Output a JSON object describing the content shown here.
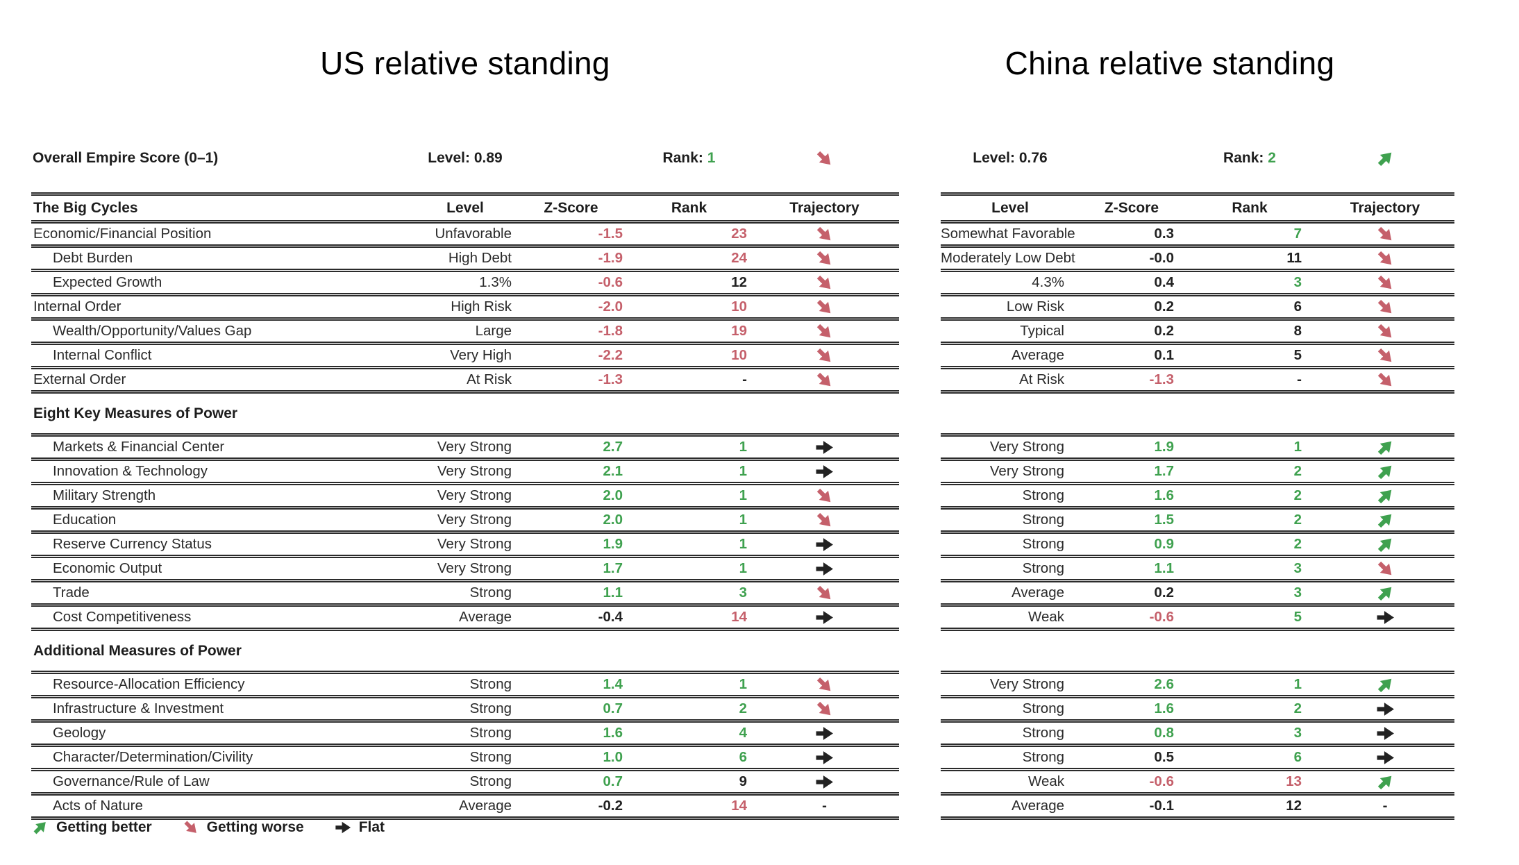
{
  "titles": {
    "us": "US relative standing",
    "china": "China relative standing"
  },
  "colors": {
    "green": "#3fa14f",
    "red": "#c5606b",
    "black": "#222222"
  },
  "overall": {
    "label": "Overall Empire Score (0–1)",
    "us": {
      "level_label": "Level: 0.89",
      "rank_label": "Rank:",
      "rank_value": "1",
      "trajectory": "worse"
    },
    "china": {
      "level_label": "Level: 0.76",
      "rank_label": "Rank:",
      "rank_value": "2",
      "trajectory": "better"
    }
  },
  "header": {
    "us_label": "The Big Cycles",
    "cols": [
      "Level",
      "Z-Score",
      "Rank",
      "Trajectory"
    ]
  },
  "rows": [
    {
      "type": "data",
      "label": "Economic/Financial Position",
      "indent": 0,
      "us": {
        "level": "Unfavorable",
        "z": "-1.5",
        "zc": "red",
        "rank": "23",
        "rc": "red",
        "traj": "worse"
      },
      "cn": {
        "level": "Somewhat Favorable",
        "z": "0.3",
        "zc": "black",
        "rank": "7",
        "rc": "green",
        "traj": "worse"
      }
    },
    {
      "type": "data",
      "label": "Debt Burden",
      "indent": 1,
      "us": {
        "level": "High Debt",
        "z": "-1.9",
        "zc": "red",
        "rank": "24",
        "rc": "red",
        "traj": "worse"
      },
      "cn": {
        "level": "Moderately Low Debt",
        "z": "-0.0",
        "zc": "black",
        "rank": "11",
        "rc": "black",
        "traj": "worse"
      }
    },
    {
      "type": "data",
      "label": "Expected Growth",
      "indent": 1,
      "us": {
        "level": "1.3%",
        "z": "-0.6",
        "zc": "red",
        "rank": "12",
        "rc": "black",
        "traj": "worse"
      },
      "cn": {
        "level": "4.3%",
        "z": "0.4",
        "zc": "black",
        "rank": "3",
        "rc": "green",
        "traj": "worse"
      }
    },
    {
      "type": "data",
      "label": "Internal Order",
      "indent": 0,
      "us": {
        "level": "High Risk",
        "z": "-2.0",
        "zc": "red",
        "rank": "10",
        "rc": "red",
        "traj": "worse"
      },
      "cn": {
        "level": "Low Risk",
        "z": "0.2",
        "zc": "black",
        "rank": "6",
        "rc": "black",
        "traj": "worse"
      }
    },
    {
      "type": "data",
      "label": "Wealth/Opportunity/Values Gap",
      "indent": 1,
      "us": {
        "level": "Large",
        "z": "-1.8",
        "zc": "red",
        "rank": "19",
        "rc": "red",
        "traj": "worse"
      },
      "cn": {
        "level": "Typical",
        "z": "0.2",
        "zc": "black",
        "rank": "8",
        "rc": "black",
        "traj": "worse"
      }
    },
    {
      "type": "data",
      "label": "Internal Conflict",
      "indent": 1,
      "us": {
        "level": "Very High",
        "z": "-2.2",
        "zc": "red",
        "rank": "10",
        "rc": "red",
        "traj": "worse"
      },
      "cn": {
        "level": "Average",
        "z": "0.1",
        "zc": "black",
        "rank": "5",
        "rc": "black",
        "traj": "worse"
      }
    },
    {
      "type": "data",
      "label": "External Order",
      "indent": 0,
      "us": {
        "level": "At Risk",
        "z": "-1.3",
        "zc": "red",
        "rank": "-",
        "rc": "black",
        "traj": "worse"
      },
      "cn": {
        "level": "At Risk",
        "z": "-1.3",
        "zc": "red",
        "rank": "-",
        "rc": "black",
        "traj": "worse"
      }
    },
    {
      "type": "section",
      "label": "Eight Key Measures of Power"
    },
    {
      "type": "data",
      "label": "Markets & Financial Center",
      "indent": 1,
      "us": {
        "level": "Very Strong",
        "z": "2.7",
        "zc": "green",
        "rank": "1",
        "rc": "green",
        "traj": "flat"
      },
      "cn": {
        "level": "Very Strong",
        "z": "1.9",
        "zc": "green",
        "rank": "1",
        "rc": "green",
        "traj": "better"
      }
    },
    {
      "type": "data",
      "label": "Innovation & Technology",
      "indent": 1,
      "us": {
        "level": "Very Strong",
        "z": "2.1",
        "zc": "green",
        "rank": "1",
        "rc": "green",
        "traj": "flat"
      },
      "cn": {
        "level": "Very Strong",
        "z": "1.7",
        "zc": "green",
        "rank": "2",
        "rc": "green",
        "traj": "better"
      }
    },
    {
      "type": "data",
      "label": "Military Strength",
      "indent": 1,
      "us": {
        "level": "Very Strong",
        "z": "2.0",
        "zc": "green",
        "rank": "1",
        "rc": "green",
        "traj": "worse"
      },
      "cn": {
        "level": "Strong",
        "z": "1.6",
        "zc": "green",
        "rank": "2",
        "rc": "green",
        "traj": "better"
      }
    },
    {
      "type": "data",
      "label": "Education",
      "indent": 1,
      "us": {
        "level": "Very Strong",
        "z": "2.0",
        "zc": "green",
        "rank": "1",
        "rc": "green",
        "traj": "worse"
      },
      "cn": {
        "level": "Strong",
        "z": "1.5",
        "zc": "green",
        "rank": "2",
        "rc": "green",
        "traj": "better"
      }
    },
    {
      "type": "data",
      "label": "Reserve Currency Status",
      "indent": 1,
      "us": {
        "level": "Very Strong",
        "z": "1.9",
        "zc": "green",
        "rank": "1",
        "rc": "green",
        "traj": "flat"
      },
      "cn": {
        "level": "Strong",
        "z": "0.9",
        "zc": "green",
        "rank": "2",
        "rc": "green",
        "traj": "better"
      }
    },
    {
      "type": "data",
      "label": "Economic Output",
      "indent": 1,
      "us": {
        "level": "Very Strong",
        "z": "1.7",
        "zc": "green",
        "rank": "1",
        "rc": "green",
        "traj": "flat"
      },
      "cn": {
        "level": "Strong",
        "z": "1.1",
        "zc": "green",
        "rank": "3",
        "rc": "green",
        "traj": "worse"
      }
    },
    {
      "type": "data",
      "label": "Trade",
      "indent": 1,
      "us": {
        "level": "Strong",
        "z": "1.1",
        "zc": "green",
        "rank": "3",
        "rc": "green",
        "traj": "worse"
      },
      "cn": {
        "level": "Average",
        "z": "0.2",
        "zc": "black",
        "rank": "3",
        "rc": "green",
        "traj": "better"
      }
    },
    {
      "type": "data",
      "label": "Cost Competitiveness",
      "indent": 1,
      "us": {
        "level": "Average",
        "z": "-0.4",
        "zc": "black",
        "rank": "14",
        "rc": "red",
        "traj": "flat"
      },
      "cn": {
        "level": "Weak",
        "z": "-0.6",
        "zc": "red",
        "rank": "5",
        "rc": "green",
        "traj": "flat"
      }
    },
    {
      "type": "section",
      "label": "Additional Measures of Power"
    },
    {
      "type": "data",
      "label": "Resource-Allocation Efficiency",
      "indent": 1,
      "us": {
        "level": "Strong",
        "z": "1.4",
        "zc": "green",
        "rank": "1",
        "rc": "green",
        "traj": "worse"
      },
      "cn": {
        "level": "Very Strong",
        "z": "2.6",
        "zc": "green",
        "rank": "1",
        "rc": "green",
        "traj": "better"
      }
    },
    {
      "type": "data",
      "label": "Infrastructure & Investment",
      "indent": 1,
      "us": {
        "level": "Strong",
        "z": "0.7",
        "zc": "green",
        "rank": "2",
        "rc": "green",
        "traj": "worse"
      },
      "cn": {
        "level": "Strong",
        "z": "1.6",
        "zc": "green",
        "rank": "2",
        "rc": "green",
        "traj": "flat"
      }
    },
    {
      "type": "data",
      "label": "Geology",
      "indent": 1,
      "us": {
        "level": "Strong",
        "z": "1.6",
        "zc": "green",
        "rank": "4",
        "rc": "green",
        "traj": "flat"
      },
      "cn": {
        "level": "Strong",
        "z": "0.8",
        "zc": "green",
        "rank": "3",
        "rc": "green",
        "traj": "flat"
      }
    },
    {
      "type": "data",
      "label": "Character/Determination/Civility",
      "indent": 1,
      "us": {
        "level": "Strong",
        "z": "1.0",
        "zc": "green",
        "rank": "6",
        "rc": "green",
        "traj": "flat"
      },
      "cn": {
        "level": "Strong",
        "z": "0.5",
        "zc": "black",
        "rank": "6",
        "rc": "green",
        "traj": "flat"
      }
    },
    {
      "type": "data",
      "label": "Governance/Rule of Law",
      "indent": 1,
      "us": {
        "level": "Strong",
        "z": "0.7",
        "zc": "green",
        "rank": "9",
        "rc": "black",
        "traj": "flat"
      },
      "cn": {
        "level": "Weak",
        "z": "-0.6",
        "zc": "red",
        "rank": "13",
        "rc": "red",
        "traj": "better"
      }
    },
    {
      "type": "data",
      "label": "Acts of Nature",
      "indent": 1,
      "us": {
        "level": "Average",
        "z": "-0.2",
        "zc": "black",
        "rank": "14",
        "rc": "red",
        "traj": "dash"
      },
      "cn": {
        "level": "Average",
        "z": "-0.1",
        "zc": "black",
        "rank": "12",
        "rc": "black",
        "traj": "dash"
      }
    }
  ],
  "legend": [
    {
      "icon": "better",
      "label": "Getting better"
    },
    {
      "icon": "worse",
      "label": "Getting worse"
    },
    {
      "icon": "flat",
      "label": "Flat"
    }
  ]
}
